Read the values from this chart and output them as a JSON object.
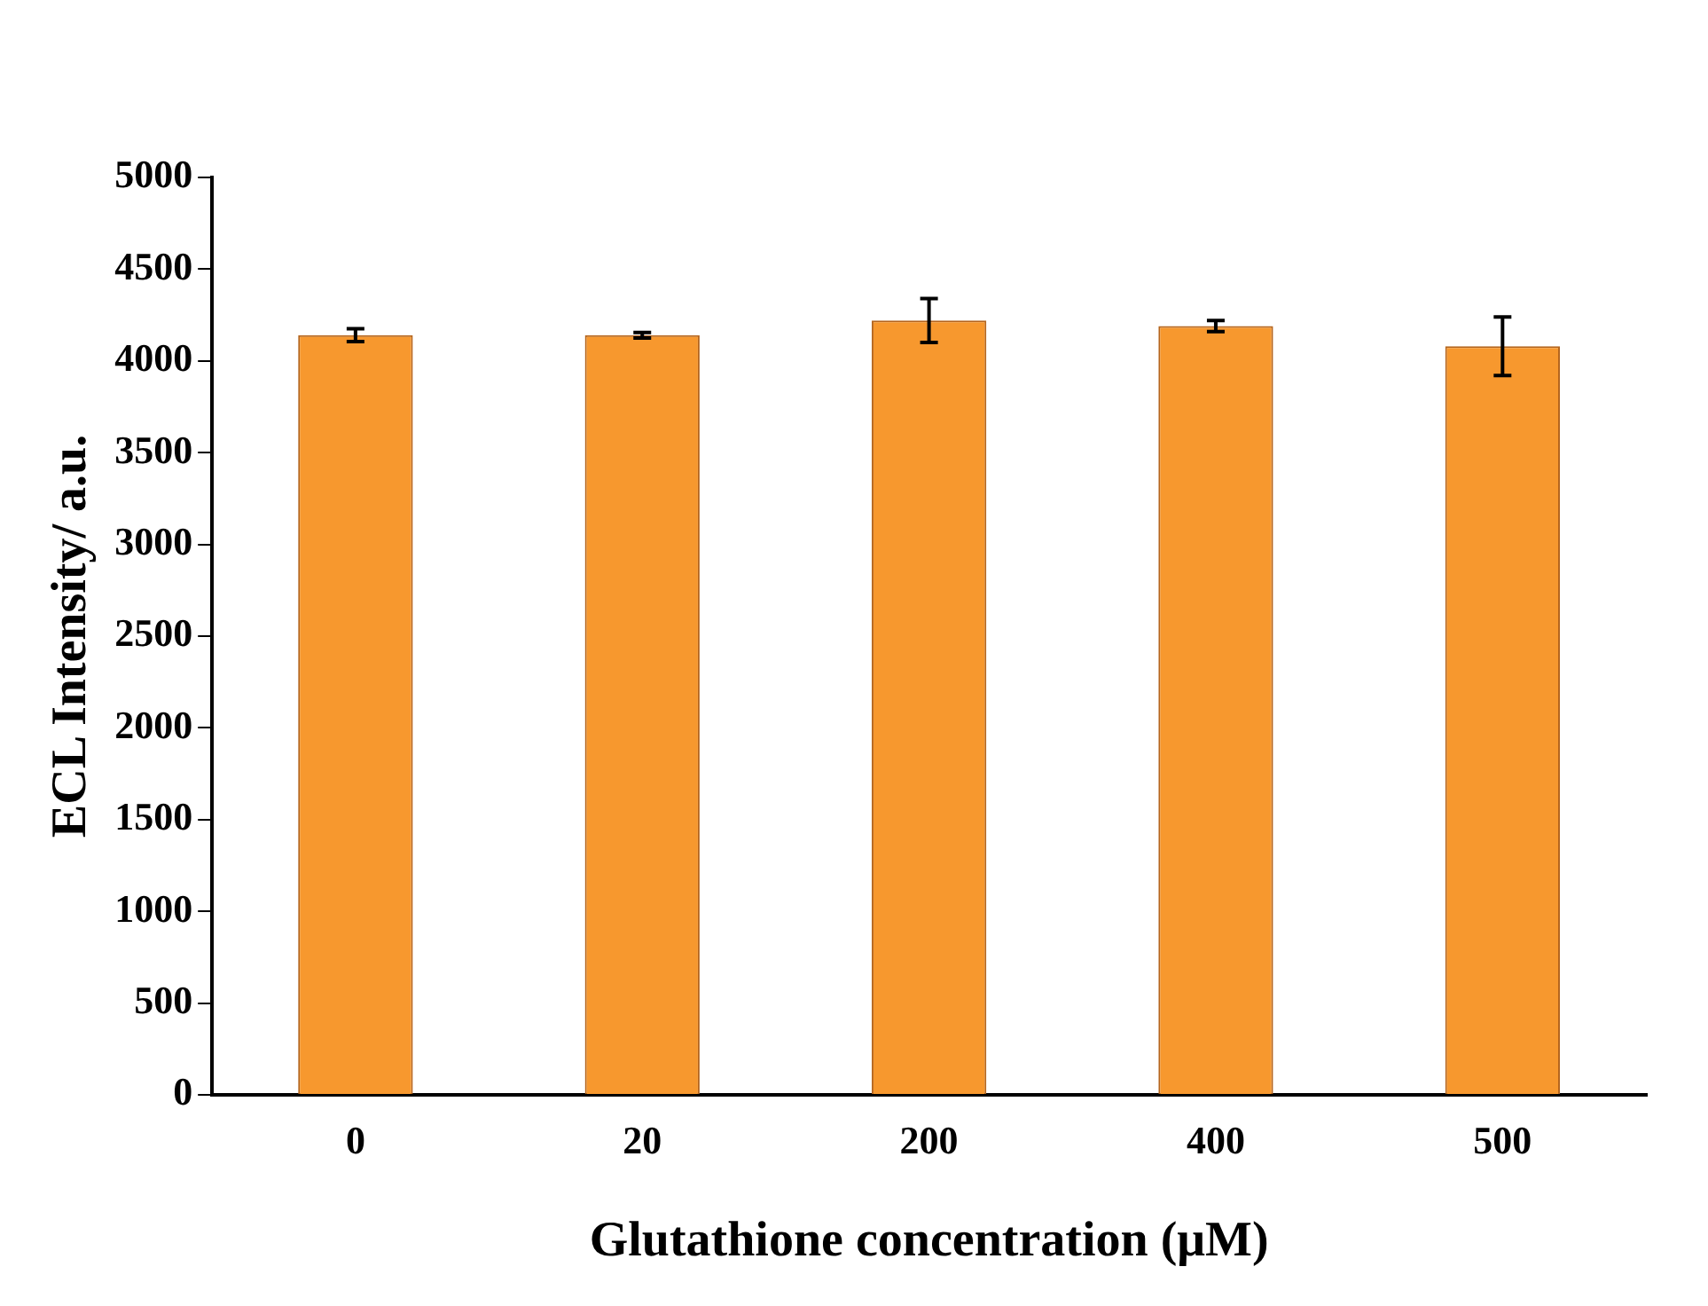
{
  "chart_data": {
    "type": "bar",
    "xlabel": "Glutathione concentration (μM)",
    "ylabel": "ECL Intensity/ a.u.",
    "categories": [
      "0",
      "20",
      "200",
      "400",
      "500"
    ],
    "values": [
      4140,
      4140,
      4220,
      4190,
      4080
    ],
    "errors": [
      35,
      15,
      120,
      30,
      160
    ],
    "color": "#f7982e",
    "ylim": [
      0,
      5000
    ],
    "yticks": [
      0,
      500,
      1000,
      1500,
      2000,
      2500,
      3000,
      3500,
      4000,
      4500,
      5000
    ],
    "grid": false,
    "legend": false
  }
}
